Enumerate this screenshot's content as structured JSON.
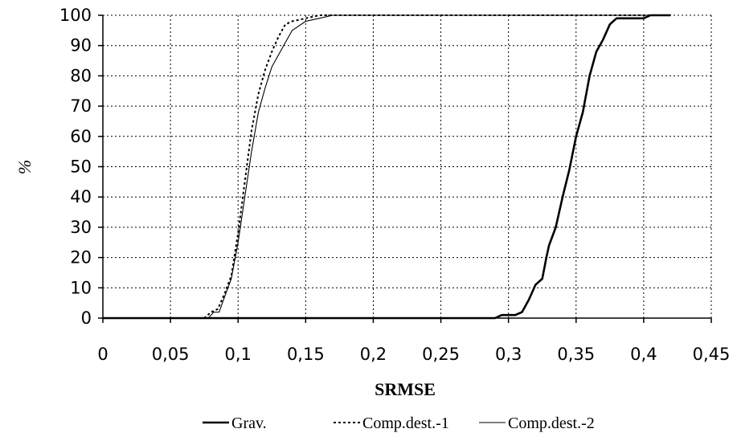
{
  "chart_data": {
    "type": "line",
    "title": "",
    "xlabel": "SRMSE",
    "ylabel": "%",
    "xlim": [
      0,
      0.45
    ],
    "ylim": [
      0,
      100
    ],
    "grid": true,
    "legend_position": "bottom",
    "x_ticks": [
      "0",
      "0,05",
      "0,1",
      "0,15",
      "0,2",
      "0,25",
      "0,3",
      "0,35",
      "0,4",
      "0,45"
    ],
    "y_ticks": [
      "0",
      "10",
      "20",
      "30",
      "40",
      "50",
      "60",
      "70",
      "80",
      "90",
      "100"
    ],
    "series": [
      {
        "name": "Grav.",
        "style": "solid-thick",
        "color": "#000000",
        "x": [
          0.0,
          0.29,
          0.295,
          0.305,
          0.31,
          0.315,
          0.32,
          0.325,
          0.328,
          0.33,
          0.335,
          0.34,
          0.345,
          0.35,
          0.355,
          0.36,
          0.365,
          0.37,
          0.375,
          0.38,
          0.385,
          0.39,
          0.4,
          0.405,
          0.42
        ],
        "y": [
          0,
          0,
          1,
          1,
          2,
          6,
          11,
          13,
          20,
          24,
          30,
          40,
          49,
          60,
          68,
          80,
          88,
          92,
          97,
          99,
          99,
          99,
          99,
          100,
          100
        ]
      },
      {
        "name": "Comp.dest.-1",
        "style": "dotted",
        "color": "#000000",
        "x": [
          0.0,
          0.075,
          0.08,
          0.085,
          0.09,
          0.095,
          0.1,
          0.105,
          0.11,
          0.115,
          0.12,
          0.125,
          0.13,
          0.135,
          0.14,
          0.15,
          0.16,
          0.17,
          0.42
        ],
        "y": [
          0,
          0,
          2,
          3,
          8,
          14,
          28,
          45,
          62,
          74,
          82,
          88,
          93,
          97,
          98,
          99,
          100,
          100,
          100
        ]
      },
      {
        "name": "Comp.dest.-2",
        "style": "solid-thin",
        "color": "#000000",
        "x": [
          0.0,
          0.078,
          0.082,
          0.086,
          0.09,
          0.095,
          0.1,
          0.105,
          0.11,
          0.115,
          0.12,
          0.125,
          0.13,
          0.135,
          0.14,
          0.15,
          0.16,
          0.17,
          0.42
        ],
        "y": [
          0,
          0,
          2,
          2,
          7,
          13,
          25,
          40,
          55,
          68,
          76,
          83,
          87,
          91,
          95,
          98,
          99,
          100,
          100
        ]
      }
    ]
  }
}
